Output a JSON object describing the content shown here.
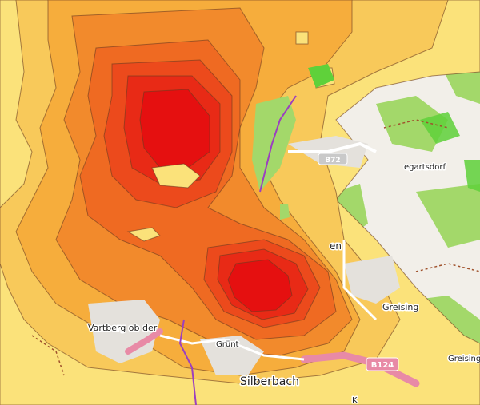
{
  "map": {
    "type": "heat contour overlay on street map",
    "colors": {
      "land": "#f2efe9",
      "forest": "#a3d86a",
      "forest_bright": "#5fd13a",
      "motorway": "#e88aa6",
      "river": "#9b3fbf",
      "dirt_track": "#a0522d",
      "contour_line": "#6a3a20",
      "level_1": "#fbe27a",
      "level_2": "#f8c95a",
      "level_3": "#f6ad3c",
      "level_4": "#f28a2c",
      "level_5": "#ef6a22",
      "level_6": "#ec4a1c",
      "level_7": "#e82a16",
      "level_8": "#e51010"
    },
    "labels": {
      "town_west": "Vartberg ob der",
      "town_grunt": "Grünt",
      "town_silberbach": "Silberbach",
      "town_greising": "Greising",
      "town_greisingt": "Greisingt",
      "town_east_north": "egartsdorf",
      "town_fragment_en": "en",
      "town_fragment_k": "K"
    },
    "road_shields": [
      {
        "id": "B124",
        "text": "B124"
      },
      {
        "id": "B72",
        "text": "B72"
      }
    ]
  }
}
